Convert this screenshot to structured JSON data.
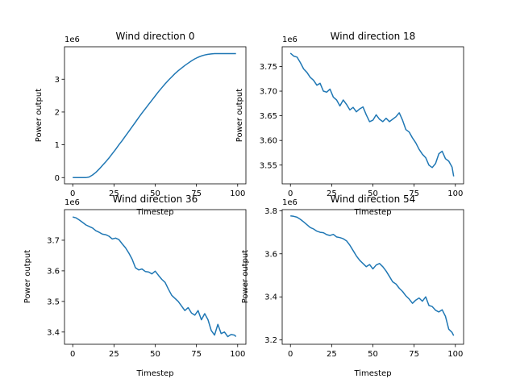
{
  "figure": {
    "background": "#ffffff",
    "line_color": "#1f77b4"
  },
  "chart_data": [
    {
      "type": "line",
      "title": "Wind direction 0",
      "xlabel": "Timestep",
      "ylabel": "Power output",
      "y_offset_label": "1e6",
      "xlim": [
        -5,
        105
      ],
      "ylim": [
        -0.19,
        3.99
      ],
      "xticks": [
        0,
        25,
        50,
        75,
        100
      ],
      "xtick_labels": [
        "0",
        "25",
        "50",
        "75",
        "100"
      ],
      "yticks": [
        0,
        1,
        2,
        3
      ],
      "ytick_labels": [
        "0",
        "1",
        "2",
        "3"
      ],
      "grid": false,
      "series": [
        {
          "x": [
            0,
            2,
            4,
            6,
            8,
            10,
            12,
            14,
            16,
            18,
            20,
            22,
            24,
            26,
            28,
            30,
            32,
            34,
            36,
            38,
            40,
            42,
            44,
            46,
            48,
            50,
            52,
            54,
            56,
            58,
            60,
            62,
            64,
            66,
            68,
            70,
            72,
            74,
            76,
            78,
            80,
            82,
            84,
            86,
            88,
            90,
            92,
            94,
            96,
            98,
            99
          ],
          "y": [
            0.0,
            0.0,
            0.0,
            0.0,
            0.0,
            0.02,
            0.08,
            0.16,
            0.26,
            0.37,
            0.48,
            0.6,
            0.73,
            0.86,
            1.0,
            1.13,
            1.27,
            1.41,
            1.55,
            1.69,
            1.83,
            1.97,
            2.1,
            2.23,
            2.36,
            2.49,
            2.62,
            2.74,
            2.86,
            2.97,
            3.07,
            3.17,
            3.26,
            3.34,
            3.42,
            3.49,
            3.56,
            3.62,
            3.67,
            3.71,
            3.74,
            3.76,
            3.77,
            3.78,
            3.78,
            3.78,
            3.78,
            3.78,
            3.78,
            3.78,
            3.78
          ]
        }
      ]
    },
    {
      "type": "line",
      "title": "Wind direction 18",
      "xlabel": "Timestep",
      "ylabel": "Power output",
      "y_offset_label": "1e6",
      "xlim": [
        -5,
        105
      ],
      "ylim": [
        3.512,
        3.79
      ],
      "xticks": [
        0,
        25,
        50,
        75,
        100
      ],
      "xtick_labels": [
        "0",
        "25",
        "50",
        "75",
        "100"
      ],
      "yticks": [
        3.55,
        3.6,
        3.65,
        3.7,
        3.75
      ],
      "ytick_labels": [
        "3.55",
        "3.60",
        "3.65",
        "3.70",
        "3.75"
      ],
      "grid": false,
      "series": [
        {
          "x": [
            0,
            2,
            4,
            6,
            8,
            10,
            12,
            14,
            16,
            18,
            20,
            22,
            24,
            26,
            28,
            30,
            32,
            34,
            36,
            38,
            40,
            42,
            44,
            46,
            48,
            50,
            52,
            54,
            56,
            58,
            60,
            62,
            64,
            66,
            68,
            70,
            72,
            74,
            76,
            78,
            80,
            82,
            84,
            86,
            88,
            90,
            92,
            94,
            96,
            98,
            99
          ],
          "y": [
            3.777,
            3.771,
            3.769,
            3.758,
            3.745,
            3.738,
            3.728,
            3.722,
            3.712,
            3.716,
            3.7,
            3.698,
            3.704,
            3.688,
            3.682,
            3.67,
            3.682,
            3.673,
            3.662,
            3.667,
            3.658,
            3.664,
            3.668,
            3.652,
            3.638,
            3.641,
            3.652,
            3.643,
            3.638,
            3.645,
            3.638,
            3.643,
            3.648,
            3.656,
            3.641,
            3.622,
            3.617,
            3.605,
            3.595,
            3.582,
            3.572,
            3.565,
            3.55,
            3.545,
            3.553,
            3.573,
            3.578,
            3.563,
            3.558,
            3.546,
            3.527
          ]
        }
      ]
    },
    {
      "type": "line",
      "title": "Wind direction 36",
      "xlabel": "Timestep",
      "ylabel": "Power output",
      "y_offset_label": "1e6",
      "xlim": [
        -5,
        105
      ],
      "ylim": [
        3.36,
        3.8
      ],
      "xticks": [
        0,
        25,
        50,
        75,
        100
      ],
      "xtick_labels": [
        "0",
        "25",
        "50",
        "75",
        "100"
      ],
      "yticks": [
        3.4,
        3.5,
        3.6,
        3.7
      ],
      "ytick_labels": [
        "3.4",
        "3.5",
        "3.6",
        "3.7"
      ],
      "grid": false,
      "series": [
        {
          "x": [
            0,
            2,
            4,
            6,
            8,
            10,
            12,
            14,
            16,
            18,
            20,
            22,
            24,
            26,
            28,
            30,
            32,
            34,
            36,
            38,
            40,
            42,
            44,
            46,
            48,
            50,
            52,
            54,
            56,
            58,
            60,
            62,
            64,
            66,
            68,
            70,
            72,
            74,
            76,
            78,
            80,
            82,
            84,
            86,
            88,
            90,
            92,
            94,
            96,
            98,
            99
          ],
          "y": [
            3.776,
            3.773,
            3.766,
            3.758,
            3.75,
            3.745,
            3.74,
            3.731,
            3.726,
            3.72,
            3.718,
            3.713,
            3.704,
            3.707,
            3.702,
            3.688,
            3.675,
            3.658,
            3.638,
            3.61,
            3.603,
            3.606,
            3.598,
            3.596,
            3.59,
            3.599,
            3.585,
            3.572,
            3.562,
            3.54,
            3.52,
            3.51,
            3.5,
            3.485,
            3.47,
            3.48,
            3.462,
            3.455,
            3.47,
            3.44,
            3.46,
            3.44,
            3.405,
            3.39,
            3.425,
            3.395,
            3.4,
            3.385,
            3.392,
            3.39,
            3.385
          ]
        }
      ]
    },
    {
      "type": "line",
      "title": "Wind direction 54",
      "xlabel": "Timestep",
      "ylabel": "Power output",
      "y_offset_label": "1e6",
      "xlim": [
        -5,
        105
      ],
      "ylim": [
        3.18,
        3.805
      ],
      "xticks": [
        0,
        25,
        50,
        75,
        100
      ],
      "xtick_labels": [
        "0",
        "25",
        "50",
        "75",
        "100"
      ],
      "yticks": [
        3.2,
        3.4,
        3.6,
        3.8
      ],
      "ytick_labels": [
        "3.2",
        "3.4",
        "3.6",
        "3.8"
      ],
      "grid": false,
      "series": [
        {
          "x": [
            0,
            2,
            4,
            6,
            8,
            10,
            12,
            14,
            16,
            18,
            20,
            22,
            24,
            26,
            28,
            30,
            32,
            34,
            36,
            38,
            40,
            42,
            44,
            46,
            48,
            50,
            52,
            54,
            56,
            58,
            60,
            62,
            64,
            66,
            68,
            70,
            72,
            74,
            76,
            78,
            80,
            82,
            84,
            86,
            88,
            90,
            92,
            94,
            96,
            98,
            99
          ],
          "y": [
            3.776,
            3.774,
            3.77,
            3.76,
            3.748,
            3.735,
            3.722,
            3.715,
            3.705,
            3.7,
            3.698,
            3.689,
            3.685,
            3.69,
            3.678,
            3.675,
            3.67,
            3.66,
            3.64,
            3.615,
            3.59,
            3.57,
            3.555,
            3.54,
            3.55,
            3.53,
            3.548,
            3.555,
            3.54,
            3.52,
            3.495,
            3.47,
            3.46,
            3.44,
            3.425,
            3.405,
            3.39,
            3.37,
            3.385,
            3.395,
            3.38,
            3.4,
            3.36,
            3.355,
            3.338,
            3.33,
            3.34,
            3.31,
            3.25,
            3.235,
            3.22
          ]
        }
      ]
    }
  ]
}
